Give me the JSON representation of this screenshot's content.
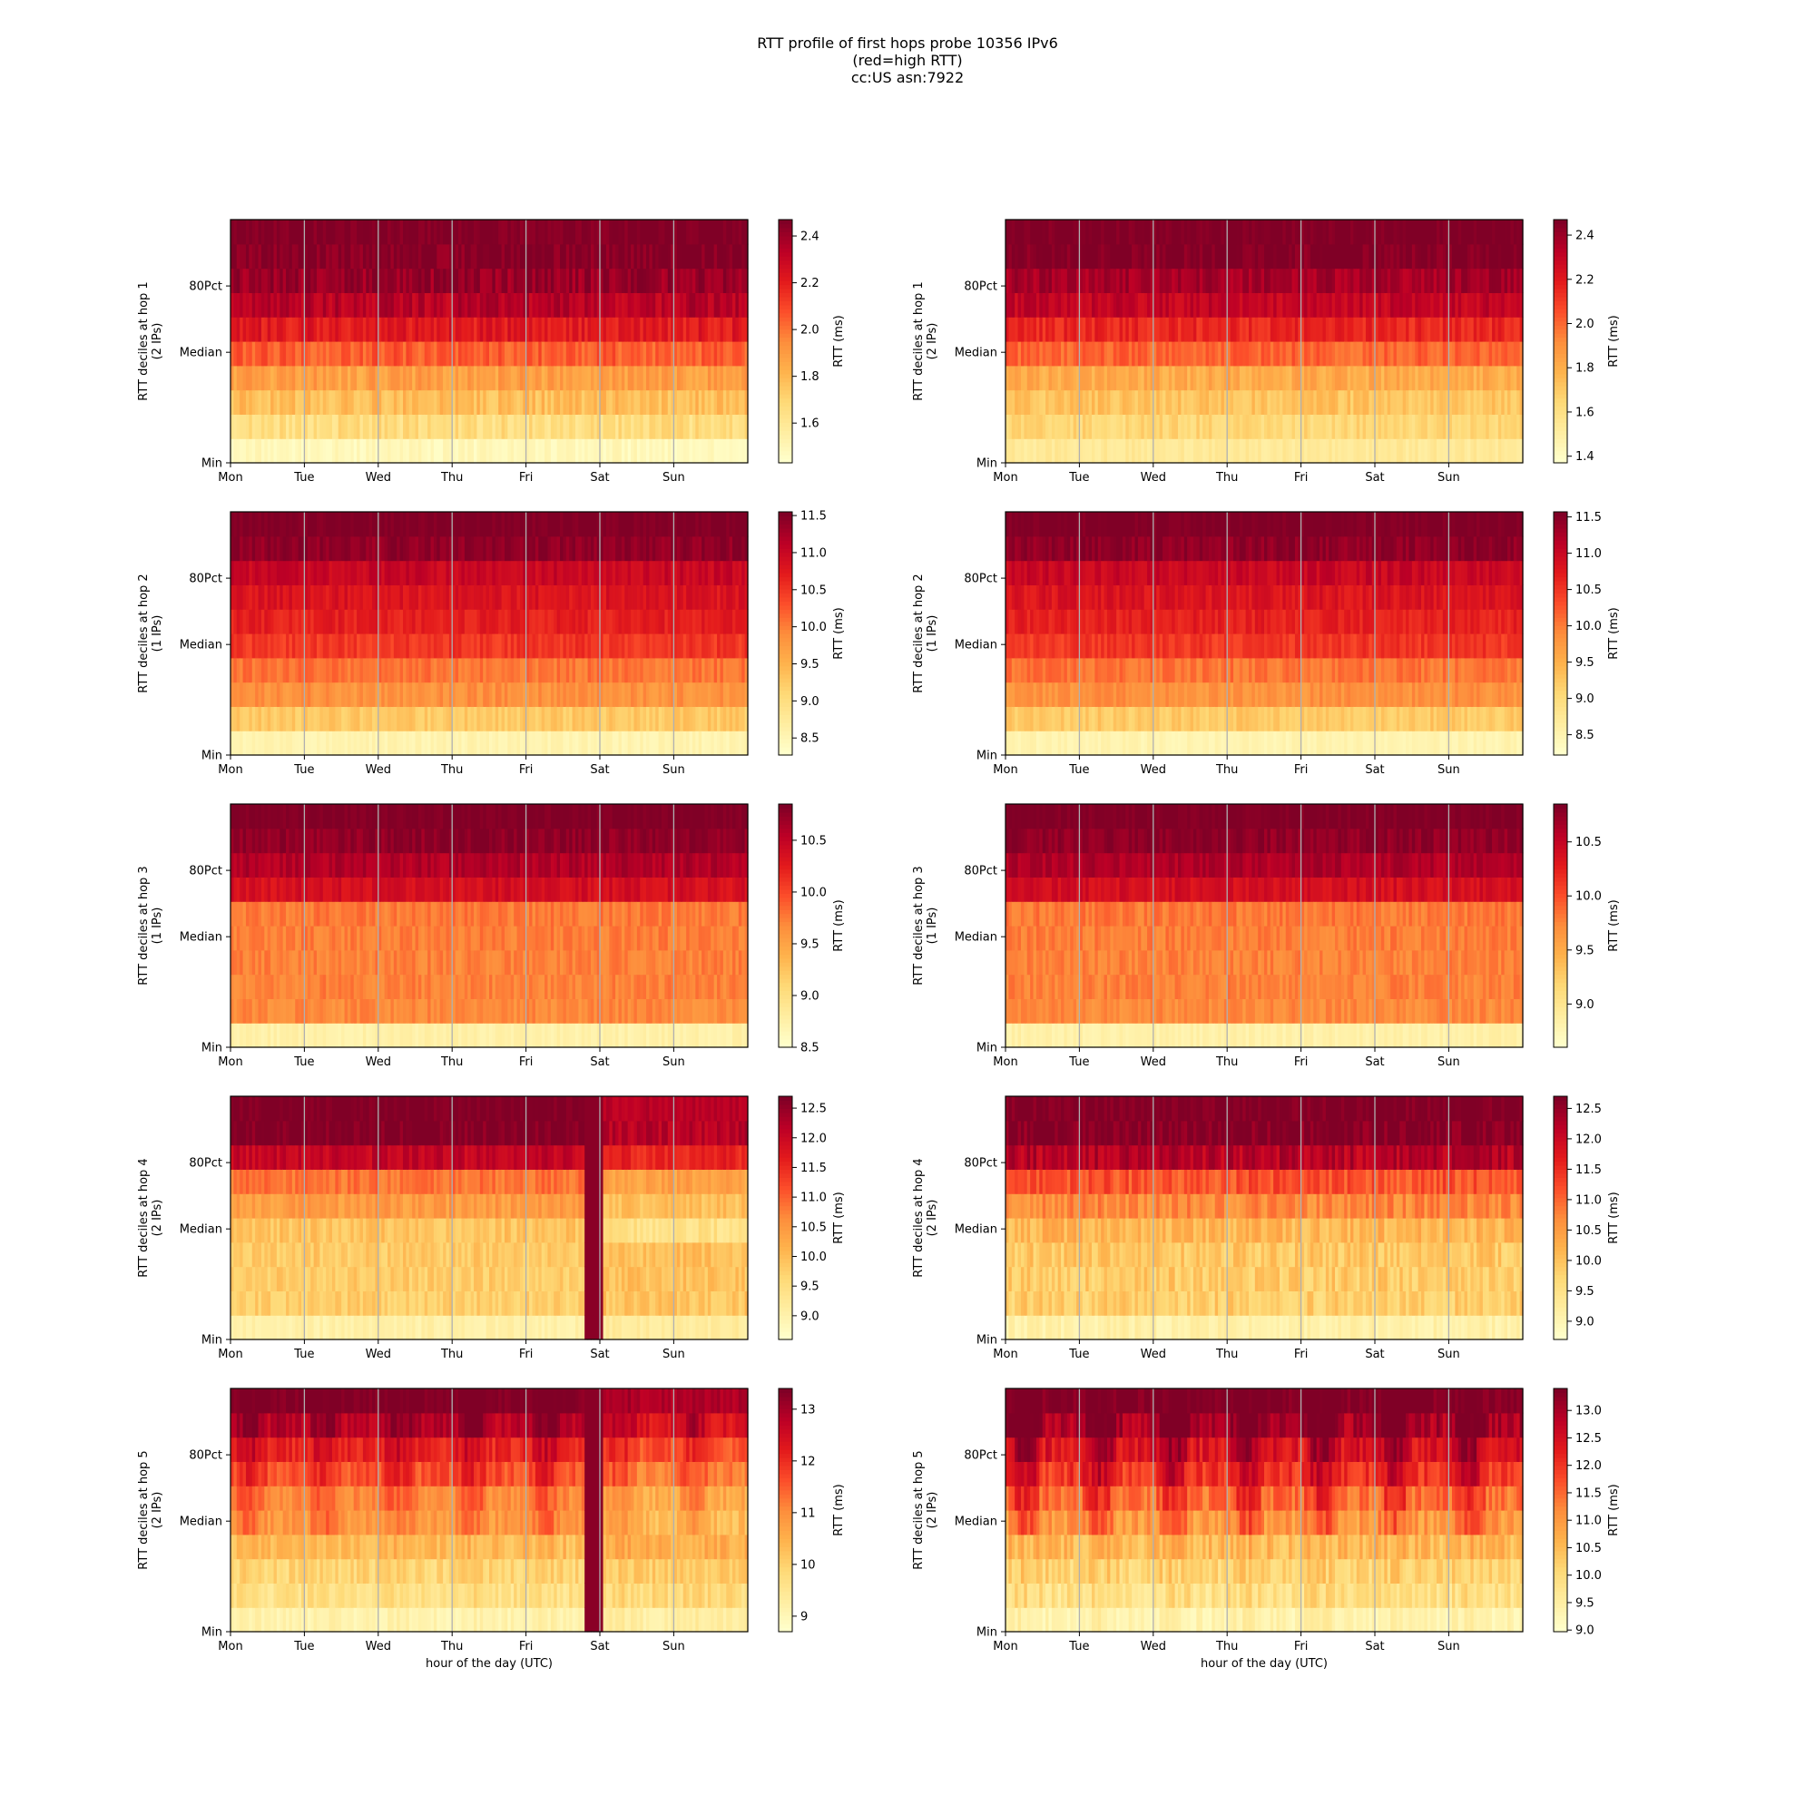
{
  "figure": {
    "title": "RTT profile of first hops probe 10356 IPv6",
    "subtitle": "(red=high RTT)",
    "meta": "cc:US asn:7922",
    "day_labels": [
      "Mon",
      "Tue",
      "Wed",
      "Thu",
      "Fri",
      "Sat",
      "Sun"
    ],
    "y_tick_labels": [
      "Min",
      "Median",
      "80Pct"
    ],
    "x_axis_label": "hour of the day (UTC)",
    "colorbar_label": "RTT (ms)",
    "colormap": [
      "#ffffcc",
      "#ffeda0",
      "#fed976",
      "#feb24c",
      "#fd8d3c",
      "#fc4e2a",
      "#e31a1c",
      "#bd0026",
      "#800026"
    ],
    "grid_color": "#b0b0b0"
  },
  "chart_data": [
    {
      "type": "heatmap",
      "column": "left",
      "row": 1,
      "ylabel": "RTT deciles at hop 1",
      "ips": "(2 IPs)",
      "xlabel": "",
      "x_categories": [
        "Mon",
        "Tue",
        "Wed",
        "Thu",
        "Fri",
        "Sat",
        "Sun"
      ],
      "y_categories": [
        "Min",
        "Median",
        "80Pct"
      ],
      "colorbar": {
        "min": 1.43,
        "max": 2.47,
        "ticks": [
          1.6,
          1.8,
          2.0,
          2.2,
          2.4
        ]
      },
      "decile_levels": [
        0.05,
        0.22,
        0.34,
        0.44,
        0.6,
        0.76,
        0.88,
        0.95,
        1.0,
        1.0
      ],
      "noise": 0.14,
      "event": null
    },
    {
      "type": "heatmap",
      "column": "right",
      "row": 1,
      "ylabel": "RTT deciles at hop 1",
      "ips": "(2 IPs)",
      "xlabel": "",
      "x_categories": [
        "Mon",
        "Tue",
        "Wed",
        "Thu",
        "Fri",
        "Sat",
        "Sun"
      ],
      "y_categories": [
        "Min",
        "Median",
        "80Pct"
      ],
      "colorbar": {
        "min": 1.37,
        "max": 2.47,
        "ticks": [
          1.4,
          1.6,
          1.8,
          2.0,
          2.2,
          2.4
        ]
      },
      "decile_levels": [
        0.15,
        0.25,
        0.32,
        0.4,
        0.58,
        0.72,
        0.85,
        0.92,
        1.0,
        1.0
      ],
      "noise": 0.12,
      "event": null
    },
    {
      "type": "heatmap",
      "column": "left",
      "row": 2,
      "ylabel": "RTT deciles at hop 2",
      "ips": "(1 IPs)",
      "xlabel": "",
      "x_categories": [
        "Mon",
        "Tue",
        "Wed",
        "Thu",
        "Fri",
        "Sat",
        "Sun"
      ],
      "y_categories": [
        "Min",
        "Median",
        "80Pct"
      ],
      "colorbar": {
        "min": 8.27,
        "max": 11.55,
        "ticks": [
          8.5,
          9.0,
          9.5,
          10.0,
          10.5,
          11.0,
          11.5
        ]
      },
      "decile_levels": [
        0.08,
        0.3,
        0.48,
        0.55,
        0.68,
        0.74,
        0.78,
        0.84,
        0.97,
        1.0
      ],
      "noise": 0.1,
      "event": null
    },
    {
      "type": "heatmap",
      "column": "right",
      "row": 2,
      "ylabel": "RTT deciles at hop 2",
      "ips": "(1 IPs)",
      "xlabel": "",
      "x_categories": [
        "Mon",
        "Tue",
        "Wed",
        "Thu",
        "Fri",
        "Sat",
        "Sun"
      ],
      "y_categories": [
        "Min",
        "Median",
        "80Pct"
      ],
      "colorbar": {
        "min": 8.22,
        "max": 11.57,
        "ticks": [
          8.5,
          9.0,
          9.5,
          10.0,
          10.5,
          11.0,
          11.5
        ]
      },
      "decile_levels": [
        0.08,
        0.3,
        0.48,
        0.55,
        0.68,
        0.74,
        0.78,
        0.84,
        0.97,
        1.0
      ],
      "noise": 0.1,
      "event": null
    },
    {
      "type": "heatmap",
      "column": "left",
      "row": 3,
      "ylabel": "RTT deciles at hop 3",
      "ips": "(1 IPs)",
      "xlabel": "",
      "x_categories": [
        "Mon",
        "Tue",
        "Wed",
        "Thu",
        "Fri",
        "Sat",
        "Sun"
      ],
      "y_categories": [
        "Min",
        "Median",
        "80Pct"
      ],
      "colorbar": {
        "min": 8.5,
        "max": 10.85,
        "ticks": [
          8.5,
          9.0,
          9.5,
          10.0,
          10.5
        ]
      },
      "decile_levels": [
        0.1,
        0.5,
        0.52,
        0.52,
        0.53,
        0.54,
        0.8,
        0.9,
        0.97,
        1.0
      ],
      "noise": 0.1,
      "event": null
    },
    {
      "type": "heatmap",
      "column": "right",
      "row": 3,
      "ylabel": "RTT deciles at hop 3",
      "ips": "(1 IPs)",
      "xlabel": "",
      "x_categories": [
        "Mon",
        "Tue",
        "Wed",
        "Thu",
        "Fri",
        "Sat",
        "Sun"
      ],
      "y_categories": [
        "Min",
        "Median",
        "80Pct"
      ],
      "colorbar": {
        "min": 8.6,
        "max": 10.85,
        "ticks": [
          9.0,
          9.5,
          10.0,
          10.5
        ]
      },
      "decile_levels": [
        0.1,
        0.5,
        0.52,
        0.52,
        0.53,
        0.54,
        0.8,
        0.9,
        0.97,
        1.0
      ],
      "noise": 0.1,
      "event": null
    },
    {
      "type": "heatmap",
      "column": "left",
      "row": 4,
      "ylabel": "RTT deciles at hop 4",
      "ips": "(2 IPs)",
      "xlabel": "",
      "x_categories": [
        "Mon",
        "Tue",
        "Wed",
        "Thu",
        "Fri",
        "Sat",
        "Sun"
      ],
      "y_categories": [
        "Min",
        "Median",
        "80Pct"
      ],
      "colorbar": {
        "min": 8.6,
        "max": 12.7,
        "ticks": [
          9.0,
          9.5,
          10.0,
          10.5,
          11.0,
          11.5,
          12.0,
          12.5
        ]
      },
      "decile_levels": [
        0.1,
        0.28,
        0.29,
        0.3,
        0.32,
        0.45,
        0.55,
        0.85,
        1.0,
        1.0
      ],
      "noise": 0.12,
      "event": {
        "day": 4.9,
        "width": 0.12,
        "shift_after": 0.12
      }
    },
    {
      "type": "heatmap",
      "column": "right",
      "row": 4,
      "ylabel": "RTT deciles at hop 4",
      "ips": "(2 IPs)",
      "xlabel": "",
      "x_categories": [
        "Mon",
        "Tue",
        "Wed",
        "Thu",
        "Fri",
        "Sat",
        "Sun"
      ],
      "y_categories": [
        "Min",
        "Median",
        "80Pct"
      ],
      "colorbar": {
        "min": 8.7,
        "max": 12.7,
        "ticks": [
          9.0,
          9.5,
          10.0,
          10.5,
          11.0,
          11.5,
          12.0,
          12.5
        ]
      },
      "decile_levels": [
        0.1,
        0.28,
        0.29,
        0.3,
        0.36,
        0.5,
        0.62,
        0.88,
        1.0,
        1.0
      ],
      "noise": 0.16,
      "event": null
    },
    {
      "type": "heatmap",
      "column": "left",
      "row": 5,
      "ylabel": "RTT deciles at hop 5",
      "ips": "(2 IPs)",
      "xlabel": "hour of the day (UTC)",
      "x_categories": [
        "Mon",
        "Tue",
        "Wed",
        "Thu",
        "Fri",
        "Sat",
        "Sun"
      ],
      "y_categories": [
        "Min",
        "Median",
        "80Pct"
      ],
      "colorbar": {
        "min": 8.7,
        "max": 13.4,
        "ticks": [
          9,
          10,
          11,
          12,
          13
        ]
      },
      "decile_levels": [
        0.08,
        0.2,
        0.25,
        0.35,
        0.45,
        0.5,
        0.62,
        0.72,
        0.88,
        1.0
      ],
      "noise": 0.14,
      "event": {
        "day": 4.9,
        "width": 0.12,
        "shift_after": 0.1
      },
      "diurnal": 0.12
    },
    {
      "type": "heatmap",
      "column": "right",
      "row": 5,
      "ylabel": "RTT deciles at hop 5",
      "ips": "(2 IPs)",
      "xlabel": "hour of the day (UTC)",
      "x_categories": [
        "Mon",
        "Tue",
        "Wed",
        "Thu",
        "Fri",
        "Sat",
        "Sun"
      ],
      "y_categories": [
        "Min",
        "Median",
        "80Pct"
      ],
      "colorbar": {
        "min": 8.97,
        "max": 13.4,
        "ticks": [
          9.0,
          9.5,
          10.0,
          10.5,
          11.0,
          11.5,
          12.0,
          12.5,
          13.0
        ]
      },
      "decile_levels": [
        0.08,
        0.2,
        0.25,
        0.35,
        0.45,
        0.55,
        0.68,
        0.78,
        0.9,
        1.0
      ],
      "noise": 0.18,
      "event": null,
      "diurnal": 0.18
    }
  ]
}
